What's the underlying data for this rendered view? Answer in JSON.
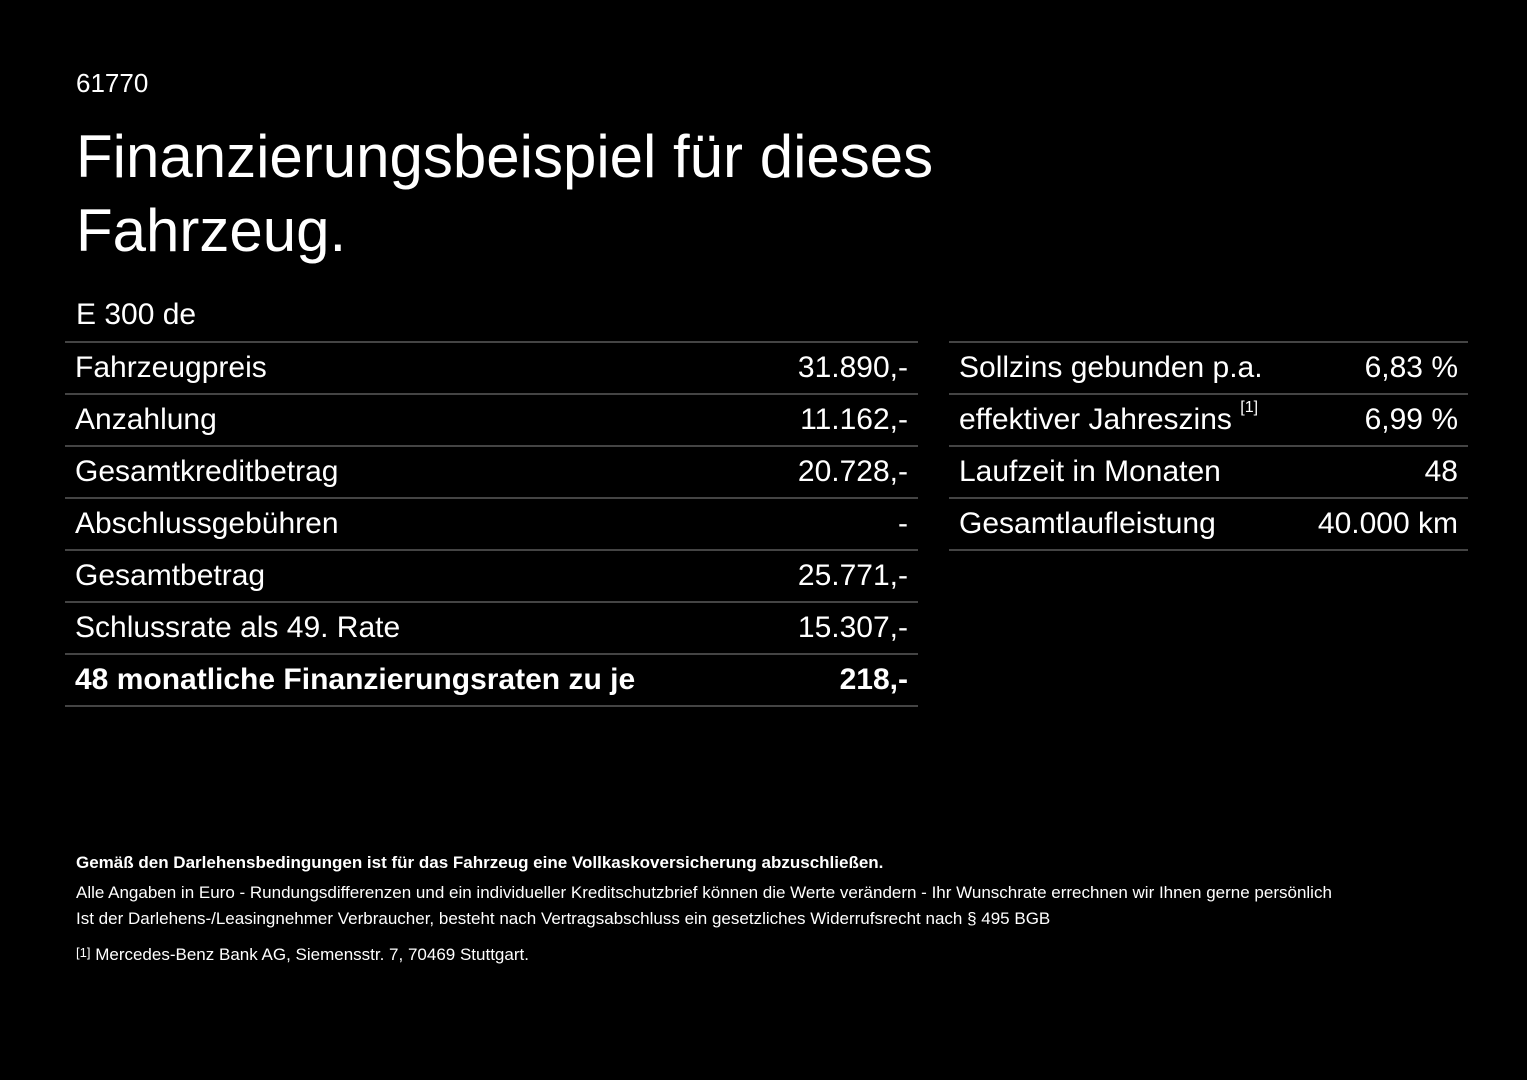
{
  "header": {
    "code": "61770",
    "title": "Finanzierungsbeispiel für dieses Fahrzeug.",
    "model": "E 300 de"
  },
  "left_table": {
    "rows": [
      [
        "Fahrzeugpreis",
        "31.890,-"
      ],
      [
        "Anzahlung",
        "11.162,-"
      ],
      [
        "Gesamtkreditbetrag",
        "20.728,-"
      ],
      [
        "Abschlussgebühren",
        "-"
      ],
      [
        "Gesamtbetrag",
        "25.771,-"
      ],
      [
        "Schlussrate als 49. Rate",
        "15.307,-"
      ],
      [
        "48 monatliche Finanzierungsraten zu je",
        "218,-"
      ]
    ]
  },
  "right_table": {
    "rows": [
      [
        "Sollzins gebunden p.a.",
        "6,83 %"
      ],
      [
        "effektiver Jahreszins",
        "6,99 %"
      ],
      [
        "Laufzeit in Monaten",
        "48"
      ],
      [
        "Gesamtlaufleistung",
        "40.000 km"
      ]
    ],
    "footnote_mark": "[1]"
  },
  "footer": {
    "bold_note": "Gemäß den Darlehensbedingungen ist für das Fahrzeug eine Vollkaskoversicherung abzuschließen.",
    "note1": "Alle Angaben in Euro - Rundungsdifferenzen und ein individueller Kreditschutzbrief können die Werte verändern - Ihr Wunschrate errechnen wir Ihnen gerne persönlich",
    "note2": "Ist der Darlehens-/Leasingnehmer Verbraucher, besteht nach Vertragsabschluss ein gesetzliches Widerrufsrecht nach § 495 BGB",
    "footnote_mark": "[1]",
    "footnote": "Mercedes-Benz Bank AG, Siemensstr. 7, 70469 Stuttgart."
  }
}
